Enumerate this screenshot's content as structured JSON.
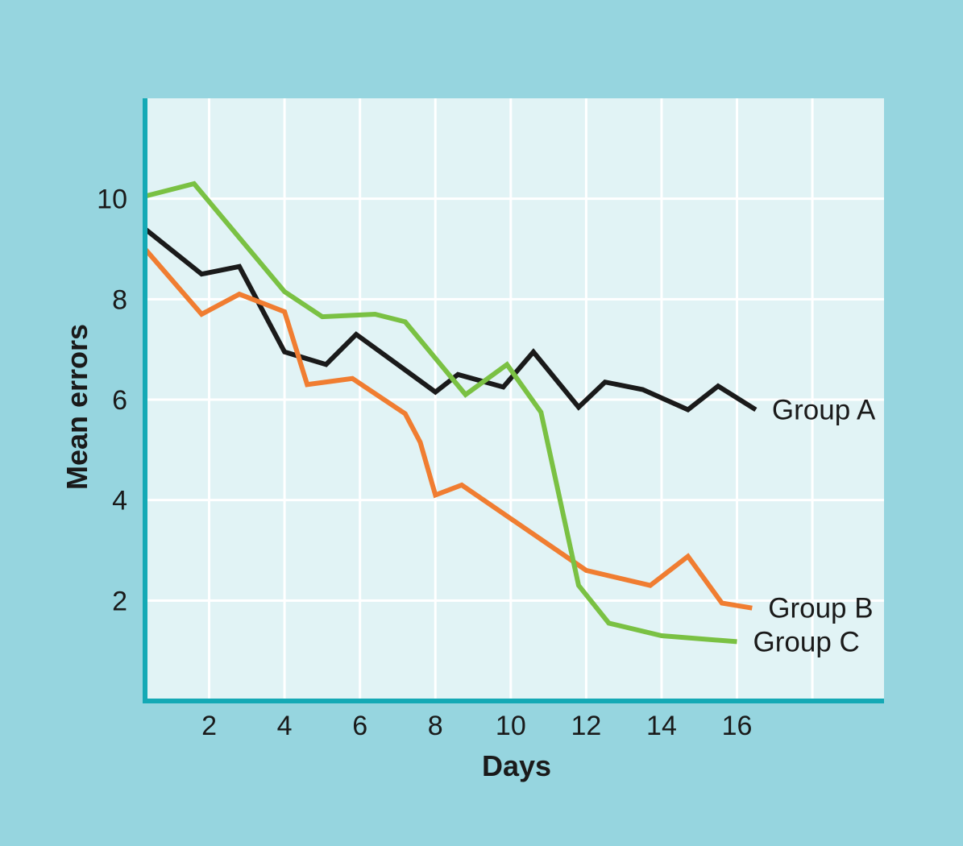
{
  "chart_data": {
    "type": "line",
    "title": "",
    "xlabel": "Days",
    "ylabel": "Mean errors",
    "xlim": [
      0.3,
      19.9
    ],
    "ylim": [
      0,
      12
    ],
    "x_ticks": [
      "2",
      "4",
      "6",
      "8",
      "10",
      "12",
      "14",
      "16"
    ],
    "y_ticks": [
      "2",
      "4",
      "6",
      "8",
      "10"
    ],
    "grid": true,
    "colors": {
      "background": "#96d5df",
      "plot_background": "#e1f3f5",
      "grid": "#ffffff",
      "axis": "#14a9b5"
    },
    "series": [
      {
        "name": "Group A",
        "color": "#1a1a1a",
        "points": [
          [
            0.3,
            9.4
          ],
          [
            1.8,
            8.5
          ],
          [
            2.8,
            8.65
          ],
          [
            4.0,
            6.95
          ],
          [
            5.1,
            6.7
          ],
          [
            5.9,
            7.3
          ],
          [
            7.0,
            6.7
          ],
          [
            8.0,
            6.15
          ],
          [
            8.6,
            6.5
          ],
          [
            9.8,
            6.25
          ],
          [
            10.6,
            6.95
          ],
          [
            11.8,
            5.85
          ],
          [
            12.5,
            6.35
          ],
          [
            13.5,
            6.2
          ],
          [
            14.7,
            5.8
          ],
          [
            15.5,
            6.27
          ],
          [
            16.5,
            5.8
          ]
        ]
      },
      {
        "name": "Group B",
        "color": "#f07d31",
        "points": [
          [
            0.3,
            9.0
          ],
          [
            1.8,
            7.7
          ],
          [
            2.8,
            8.1
          ],
          [
            4.0,
            7.75
          ],
          [
            4.6,
            6.3
          ],
          [
            5.8,
            6.42
          ],
          [
            7.2,
            5.72
          ],
          [
            7.6,
            5.15
          ],
          [
            8.0,
            4.1
          ],
          [
            8.7,
            4.3
          ],
          [
            12.0,
            2.6
          ],
          [
            13.7,
            2.3
          ],
          [
            14.7,
            2.88
          ],
          [
            15.6,
            1.95
          ],
          [
            16.4,
            1.85
          ]
        ]
      },
      {
        "name": "Group C",
        "color": "#7ac143",
        "points": [
          [
            0.3,
            10.05
          ],
          [
            1.6,
            10.3
          ],
          [
            4.0,
            8.15
          ],
          [
            5.0,
            7.65
          ],
          [
            6.4,
            7.7
          ],
          [
            7.2,
            7.55
          ],
          [
            8.8,
            6.1
          ],
          [
            9.9,
            6.7
          ],
          [
            10.8,
            5.75
          ],
          [
            11.8,
            2.3
          ],
          [
            12.6,
            1.55
          ],
          [
            14.0,
            1.3
          ],
          [
            16.0,
            1.18
          ]
        ]
      }
    ]
  }
}
